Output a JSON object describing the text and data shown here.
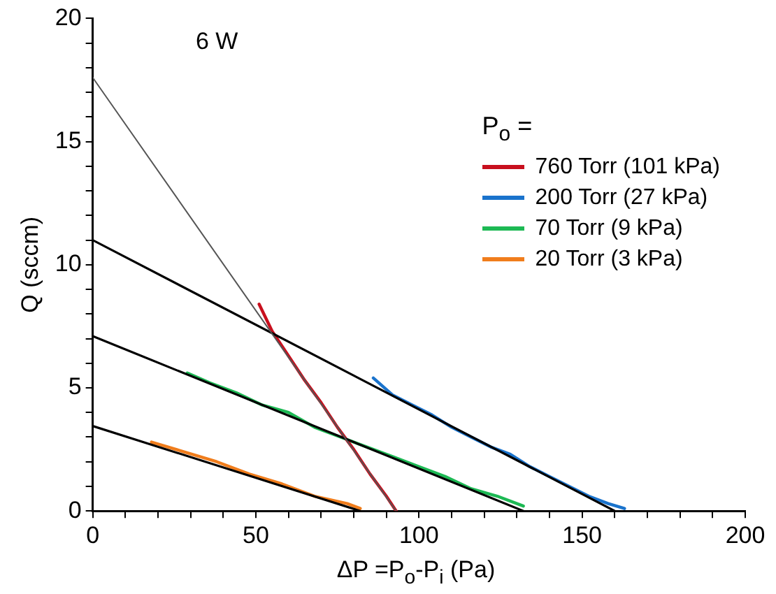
{
  "chart_data": {
    "type": "line",
    "title": "6 W",
    "xlabel": "ΔP =P$_{o}$-P$_{i}$ (Pa)",
    "ylabel": "Q (sccm)",
    "legend_title": "P$_{o}$ =",
    "legend": "top right",
    "grid": false,
    "marker": "none",
    "line_style": "solid",
    "xlim": [
      0,
      200
    ],
    "ylim": [
      0,
      20
    ],
    "xticks": [
      0,
      {
        "value": 10,
        "label": null
      },
      {
        "value": 20,
        "label": null
      },
      {
        "value": 30,
        "label": null
      },
      {
        "value": 40,
        "label": null
      },
      50,
      {
        "value": 60,
        "label": null
      },
      {
        "value": 70,
        "label": null
      },
      {
        "value": 80,
        "label": null
      },
      {
        "value": 90,
        "label": null
      },
      100,
      {
        "value": 110,
        "label": null
      },
      {
        "value": 120,
        "label": null
      },
      {
        "value": 130,
        "label": null
      },
      {
        "value": 140,
        "label": null
      },
      150,
      {
        "value": 160,
        "label": null
      },
      {
        "value": 170,
        "label": null
      },
      {
        "value": 180,
        "label": null
      },
      {
        "value": 190,
        "label": null
      },
      200
    ],
    "yticks": [
      0,
      {
        "value": 1,
        "label": null
      },
      {
        "value": 2,
        "label": null
      },
      {
        "value": 3,
        "label": null
      },
      {
        "value": 4,
        "label": null
      },
      5,
      {
        "value": 6,
        "label": null
      },
      {
        "value": 7,
        "label": null
      },
      {
        "value": 8,
        "label": null
      },
      {
        "value": 9,
        "label": null
      },
      10,
      {
        "value": 11,
        "label": null
      },
      {
        "value": 12,
        "label": null
      },
      {
        "value": 13,
        "label": null
      },
      {
        "value": 14,
        "label": null
      },
      15,
      {
        "value": 16,
        "label": null
      },
      {
        "value": 17,
        "label": null
      },
      {
        "value": 18,
        "label": null
      },
      {
        "value": 19,
        "label": null
      },
      20
    ],
    "series": [
      {
        "name": "760 Torr (101 kPa)",
        "color": "#c8101e",
        "x": [
          51,
          55,
          60,
          65,
          70,
          75,
          80,
          85,
          90,
          93
        ],
        "values": [
          8.4,
          7.3,
          6.3,
          5.3,
          4.4,
          3.4,
          2.5,
          1.5,
          0.6,
          0.0
        ]
      },
      {
        "name": "200 Torr (27 kPa)",
        "color": "#1a73cc",
        "x": [
          86,
          92,
          98,
          104,
          110,
          116,
          122,
          128,
          134,
          140,
          146,
          152,
          158,
          163
        ],
        "values": [
          5.4,
          4.7,
          4.3,
          3.9,
          3.4,
          3.0,
          2.6,
          2.3,
          1.8,
          1.4,
          1.0,
          0.6,
          0.3,
          0.1
        ]
      },
      {
        "name": "70 Torr (9 kPa)",
        "color": "#1db954",
        "x": [
          29,
          36,
          44,
          52,
          60,
          68,
          76,
          84,
          92,
          100,
          108,
          116,
          124,
          132
        ],
        "values": [
          5.6,
          5.2,
          4.8,
          4.3,
          4.0,
          3.4,
          3.0,
          2.6,
          2.2,
          1.8,
          1.4,
          0.9,
          0.6,
          0.2
        ]
      },
      {
        "name": "20 Torr (3 kPa)",
        "color": "#f07d1c",
        "x": [
          18,
          28,
          38,
          48,
          58,
          68,
          78,
          82
        ],
        "values": [
          2.8,
          2.4,
          2.0,
          1.5,
          1.1,
          0.6,
          0.3,
          0.1
        ]
      },
      {
        "type": "line",
        "color": "#555555",
        "x": [
          0,
          93
        ],
        "values": [
          17.6,
          0
        ]
      },
      {
        "type": "line",
        "color": "#000000",
        "x": [
          0,
          160
        ],
        "values": [
          11,
          0
        ]
      },
      {
        "type": "line",
        "color": "#000000",
        "x": [
          0,
          132
        ],
        "values": [
          7.1,
          0
        ]
      },
      {
        "type": "line",
        "color": "#000000",
        "x": [
          0,
          82
        ],
        "values": [
          3.45,
          0
        ]
      }
    ]
  }
}
